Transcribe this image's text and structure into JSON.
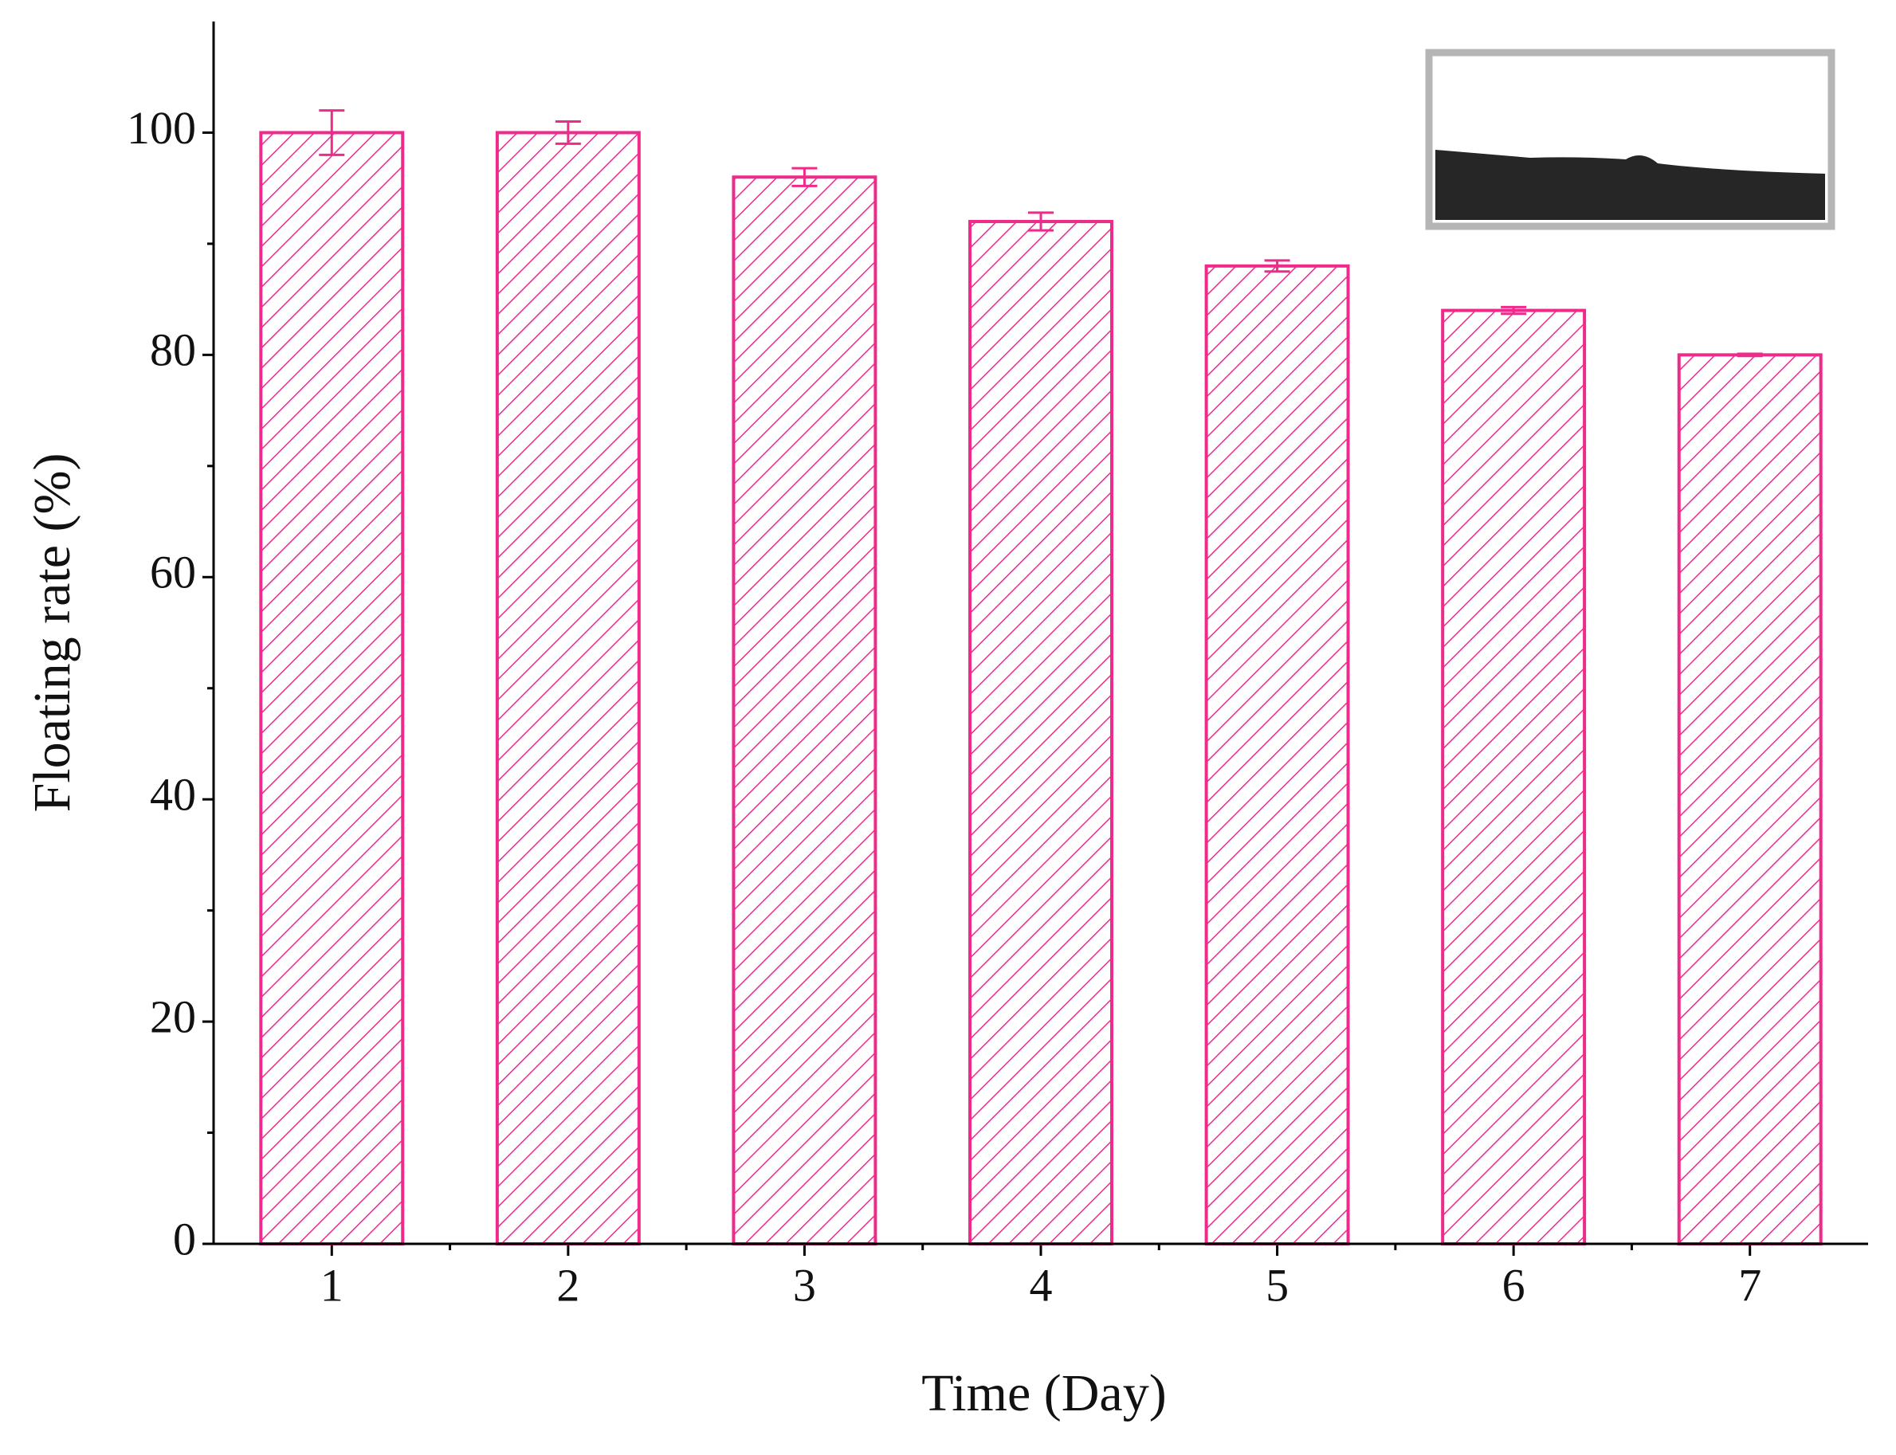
{
  "chart_data": {
    "type": "bar",
    "x_label": "Time (Day)",
    "y_label": "Floating rate (%)",
    "categories": [
      "1",
      "2",
      "3",
      "4",
      "5",
      "6",
      "7"
    ],
    "values": [
      100,
      100,
      96,
      92,
      88,
      84,
      80
    ],
    "errors": [
      2,
      1,
      0.8,
      0.8,
      0.5,
      0.3,
      0.1
    ],
    "color": "#ee2a8a",
    "hatch": true,
    "ylim": [
      0,
      110
    ],
    "yticks": [
      0,
      20,
      40,
      60,
      80,
      100
    ],
    "yminorticks": [
      10,
      30,
      50,
      70,
      90
    ],
    "grid": false
  }
}
